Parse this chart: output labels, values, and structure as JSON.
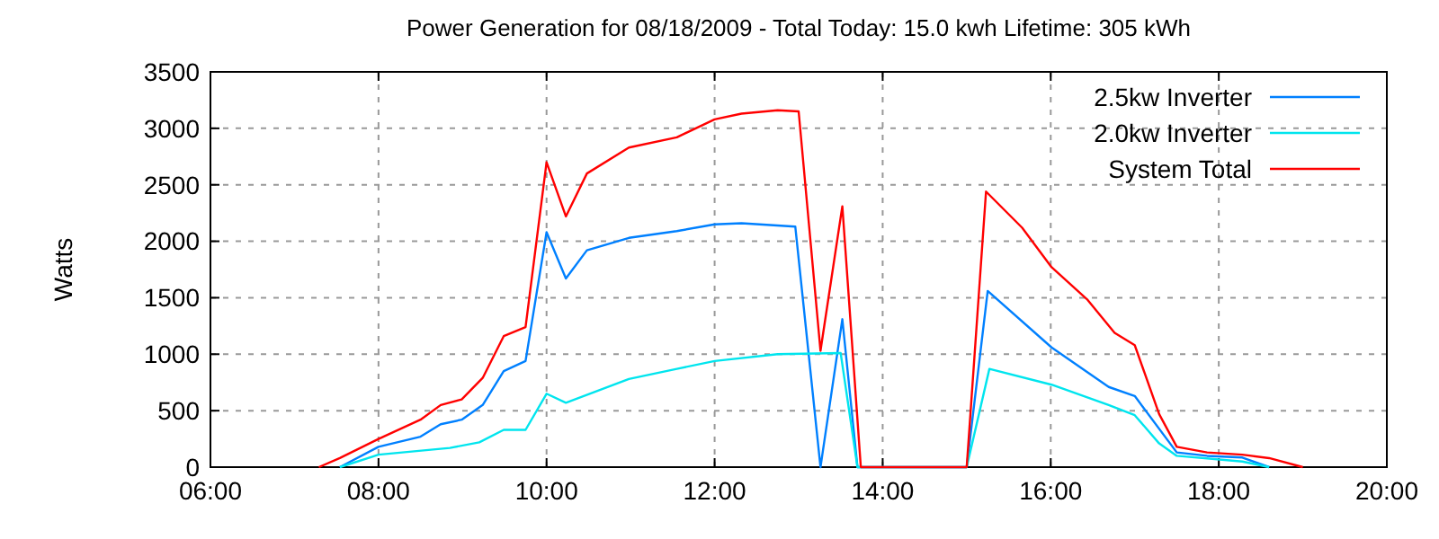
{
  "chart_data": {
    "type": "line",
    "title": "Power Generation for 08/18/2009 - Total Today: 15.0 kwh   Lifetime: 305 kWh",
    "ylabel": "Watts",
    "xlim": [
      6,
      20
    ],
    "xticks": [
      {
        "value": 6,
        "label": "06:00"
      },
      {
        "value": 8,
        "label": "08:00"
      },
      {
        "value": 10,
        "label": "10:00"
      },
      {
        "value": 12,
        "label": "12:00"
      },
      {
        "value": 14,
        "label": "14:00"
      },
      {
        "value": 16,
        "label": "16:00"
      },
      {
        "value": 18,
        "label": "18:00"
      },
      {
        "value": 20,
        "label": "20:00"
      }
    ],
    "ylim": [
      0,
      3500
    ],
    "yticks": [
      0,
      500,
      1000,
      1500,
      2000,
      2500,
      3000,
      3500
    ],
    "grid": true,
    "legend": "top right",
    "series": [
      {
        "name": "2.5kw Inverter",
        "color": "#0080ff",
        "x": [
          7.54,
          8.0,
          8.5,
          8.74,
          8.99,
          9.24,
          9.49,
          9.75,
          10.0,
          10.23,
          10.48,
          10.98,
          11.55,
          12.0,
          12.32,
          12.96,
          13.26,
          13.52,
          13.7,
          15.0,
          15.25,
          16.01,
          16.69,
          17.0,
          17.5,
          17.86,
          18.28,
          18.6
        ],
        "values": [
          0,
          180,
          270,
          380,
          420,
          550,
          850,
          940,
          2080,
          1670,
          1920,
          2030,
          2090,
          2150,
          2160,
          2130,
          0,
          1310,
          0,
          0,
          1560,
          1060,
          710,
          630,
          130,
          100,
          85,
          0
        ]
      },
      {
        "name": "2.0kw Inverter",
        "color": "#00e5ee",
        "x": [
          7.54,
          8.0,
          8.85,
          9.2,
          9.49,
          9.75,
          10.0,
          10.23,
          10.98,
          11.55,
          12.0,
          12.75,
          13.5,
          13.7,
          15.0,
          15.27,
          16.01,
          16.69,
          17.0,
          17.29,
          17.5,
          18.28,
          18.6
        ],
        "values": [
          0,
          110,
          170,
          220,
          330,
          330,
          650,
          570,
          780,
          870,
          940,
          1000,
          1010,
          0,
          0,
          870,
          730,
          550,
          460,
          210,
          100,
          50,
          0
        ]
      },
      {
        "name": "System Total",
        "color": "#ff0000",
        "x": [
          7.29,
          7.54,
          8.0,
          8.5,
          8.74,
          8.99,
          9.24,
          9.49,
          9.75,
          10.0,
          10.23,
          10.48,
          10.98,
          11.55,
          12.0,
          12.32,
          12.75,
          13.0,
          13.26,
          13.52,
          13.74,
          15.0,
          15.23,
          15.66,
          16.01,
          16.44,
          16.76,
          17.0,
          17.29,
          17.5,
          17.86,
          18.28,
          18.6,
          19.0
        ],
        "values": [
          0,
          80,
          250,
          420,
          550,
          600,
          790,
          1160,
          1240,
          2700,
          2220,
          2600,
          2830,
          2920,
          3080,
          3130,
          3160,
          3150,
          1030,
          2310,
          0,
          0,
          2440,
          2120,
          1770,
          1480,
          1190,
          1080,
          470,
          180,
          130,
          110,
          80,
          0
        ]
      }
    ]
  }
}
